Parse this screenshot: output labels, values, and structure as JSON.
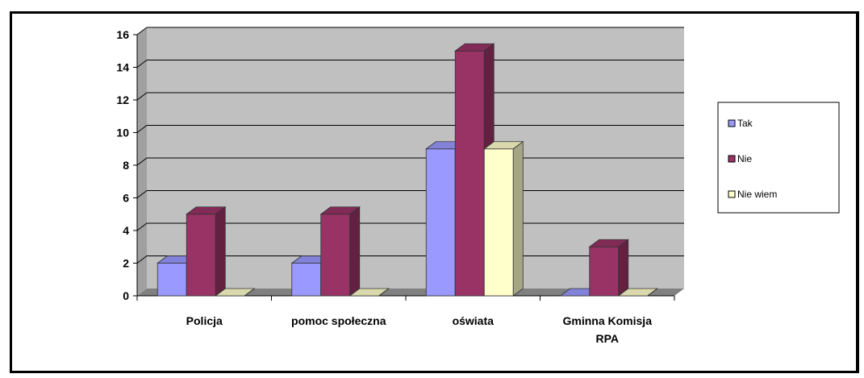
{
  "chart_data": {
    "type": "bar",
    "title": "",
    "xlabel": "",
    "ylabel": "",
    "ylim": [
      0,
      16
    ],
    "y_ticks": [
      "0",
      "2",
      "4",
      "6",
      "8",
      "10",
      "12",
      "14",
      "16"
    ],
    "grid": true,
    "legend_position": "right",
    "categories": [
      [
        "Policja"
      ],
      [
        "pomoc społeczna"
      ],
      [
        "oświata"
      ],
      [
        "Gminna Komisja",
        "RPA"
      ]
    ],
    "series": [
      {
        "name": "Tak",
        "values": [
          2,
          2,
          9,
          0
        ],
        "color": "#9999ff"
      },
      {
        "name": "Nie",
        "values": [
          5,
          5,
          15,
          3
        ],
        "color": "#993366"
      },
      {
        "name": "Nie wiem",
        "values": [
          0,
          0,
          9,
          0
        ],
        "color": "#ffffcc"
      }
    ]
  }
}
